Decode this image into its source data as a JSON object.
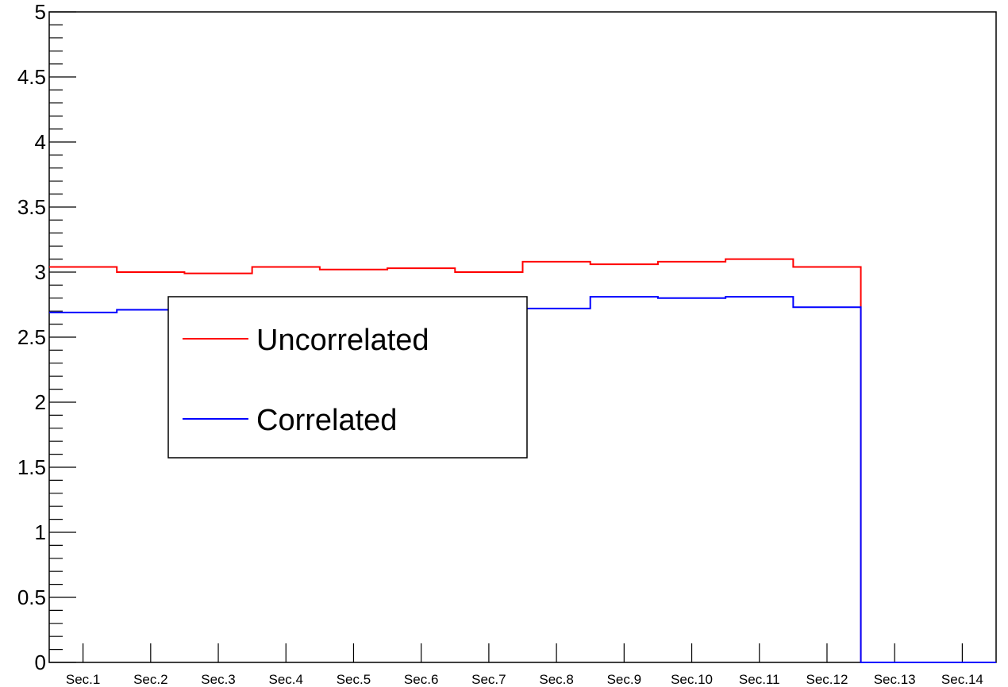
{
  "chart_data": {
    "type": "line",
    "step": true,
    "title": "",
    "xlabel": "",
    "ylabel": "",
    "categories": [
      "Sec.1",
      "Sec.2",
      "Sec.3",
      "Sec.4",
      "Sec.5",
      "Sec.6",
      "Sec.7",
      "Sec.8",
      "Sec.9",
      "Sec.10",
      "Sec.11",
      "Sec.12",
      "Sec.13",
      "Sec.14"
    ],
    "ylim": [
      0,
      5
    ],
    "yticks": [
      "0",
      "0.5",
      "1",
      "1.5",
      "2",
      "2.5",
      "3",
      "3.5",
      "4",
      "4.5",
      "5"
    ],
    "grid": false,
    "legend_position": "center-left",
    "series": [
      {
        "name": "Uncorrelated",
        "color": "#ff0000",
        "values": [
          3.04,
          3.0,
          2.99,
          3.04,
          3.02,
          3.03,
          3.0,
          3.08,
          3.06,
          3.08,
          3.1,
          3.04,
          0,
          0
        ]
      },
      {
        "name": "Correlated",
        "color": "#0000ff",
        "values": [
          2.69,
          2.71,
          2.71,
          2.72,
          2.72,
          2.72,
          2.71,
          2.72,
          2.81,
          2.8,
          2.81,
          2.73,
          0,
          0
        ]
      }
    ]
  }
}
